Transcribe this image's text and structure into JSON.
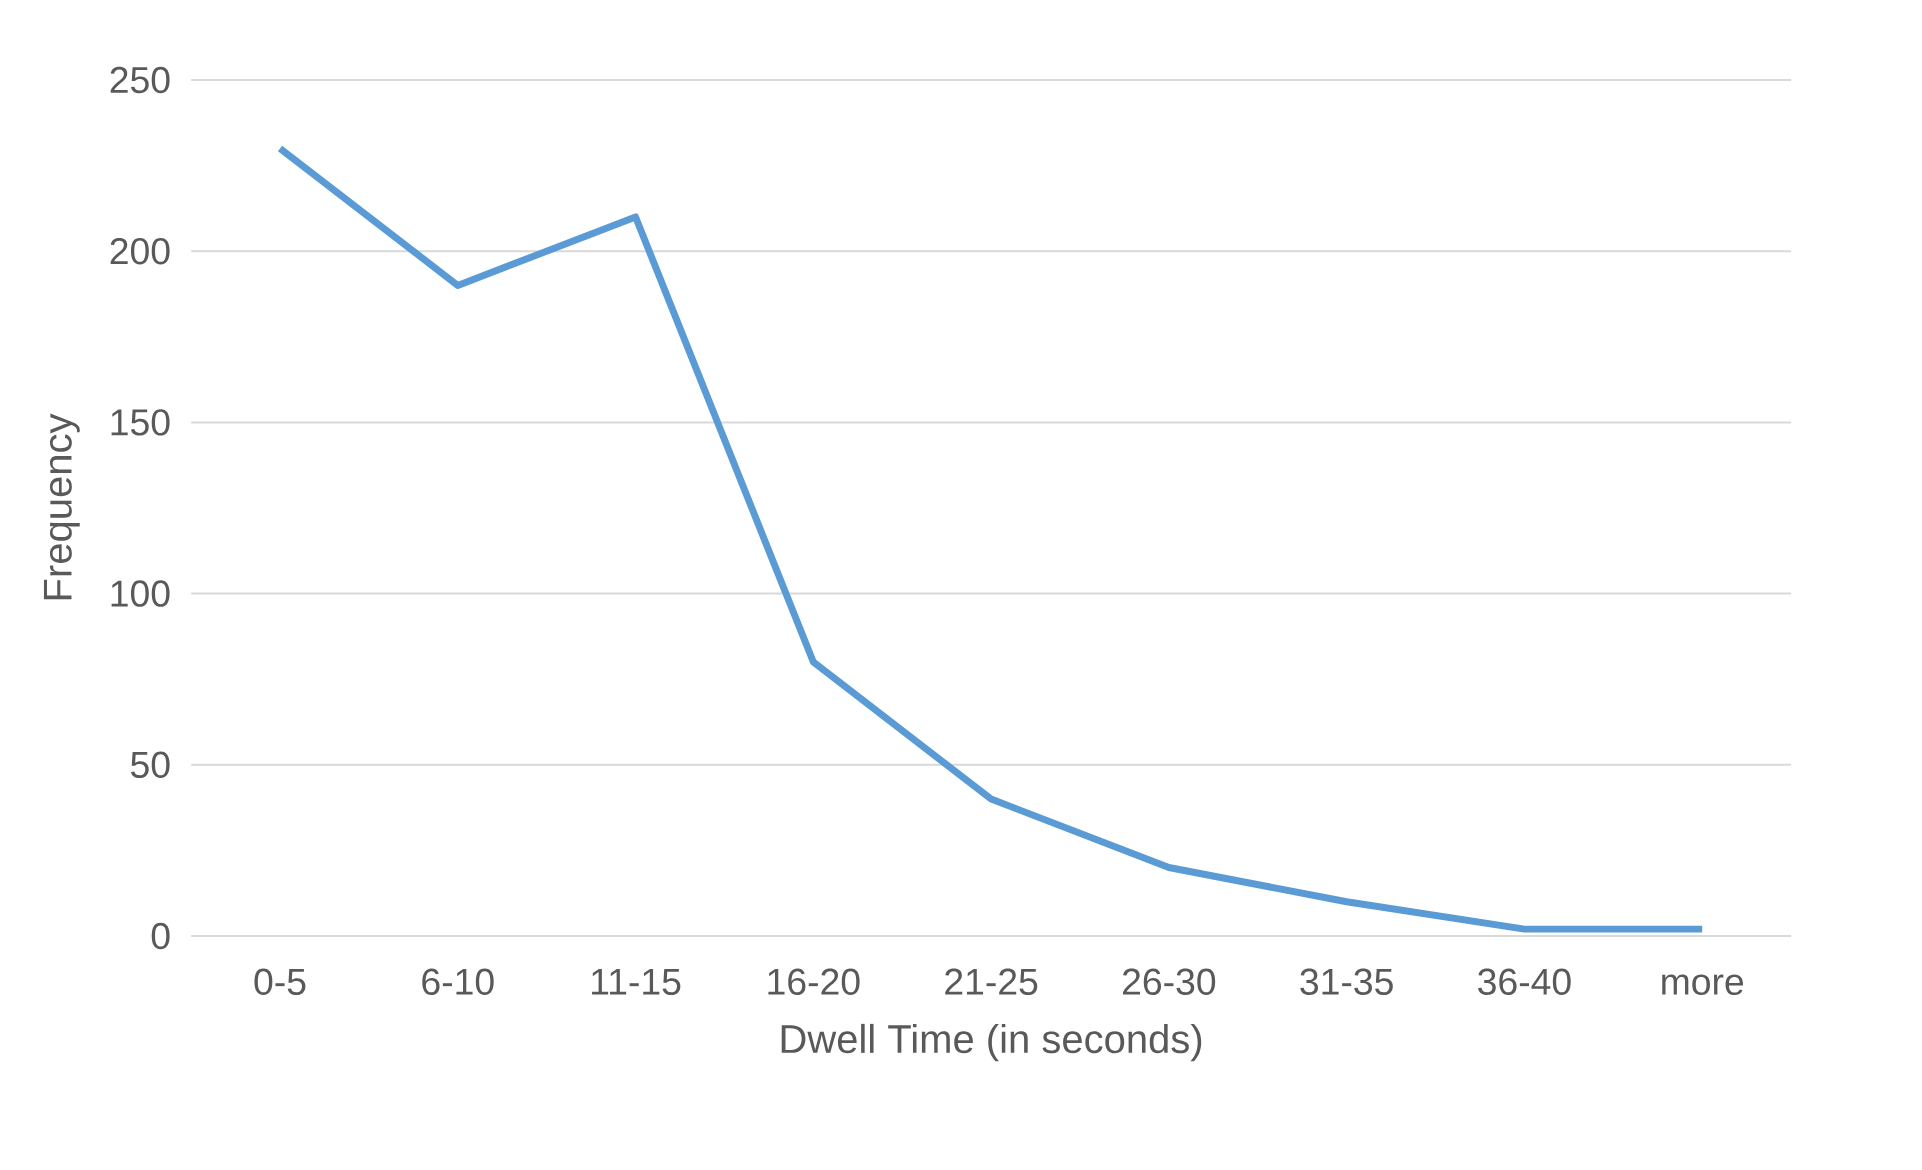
{
  "chart_data": {
    "type": "line",
    "xlabel": "Dwell Time (in seconds)",
    "ylabel": "Frequency",
    "categories": [
      "0-5",
      "6-10",
      "11-15",
      "16-20",
      "21-25",
      "26-30",
      "31-35",
      "36-40",
      "more"
    ],
    "series": [
      {
        "color": "#5b9bd5",
        "values": [
          230,
          190,
          210,
          80,
          40,
          20,
          10,
          2,
          2
        ]
      }
    ],
    "ylim": [
      0,
      250
    ],
    "yticks": [
      0,
      50,
      100,
      150,
      200,
      250
    ],
    "grid": "y"
  }
}
